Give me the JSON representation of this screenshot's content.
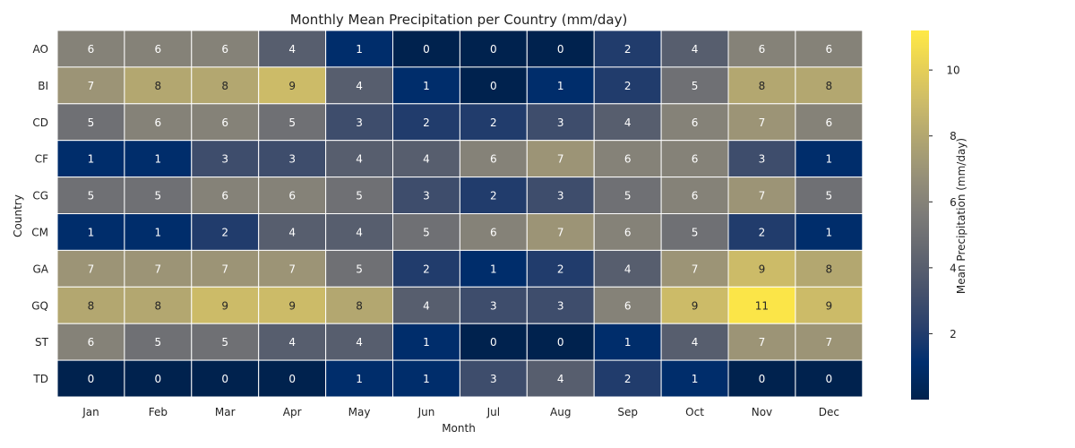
{
  "chart_data": {
    "type": "heatmap",
    "title": "Monthly Mean Precipitation per Country (mm/day)",
    "xlabel": "Month",
    "ylabel": "Country",
    "colorbar_label": "Mean Precipitation (mm/day)",
    "colormap": "cividis",
    "colorbar_range": [
      0,
      11.2
    ],
    "colorbar_ticks": [
      2,
      4,
      6,
      8,
      10
    ],
    "x_categories": [
      "Jan",
      "Feb",
      "Mar",
      "Apr",
      "May",
      "Jun",
      "Jul",
      "Aug",
      "Sep",
      "Oct",
      "Nov",
      "Dec"
    ],
    "y_categories": [
      "AO",
      "BI",
      "CD",
      "CF",
      "CG",
      "CM",
      "GA",
      "GQ",
      "ST",
      "TD"
    ],
    "values": [
      [
        6,
        6,
        6,
        4,
        1,
        0,
        0,
        0,
        2,
        4,
        6,
        6
      ],
      [
        7,
        8,
        8,
        9,
        4,
        1,
        0,
        1,
        2,
        5,
        8,
        8
      ],
      [
        5,
        6,
        6,
        5,
        3,
        2,
        2,
        3,
        4,
        6,
        7,
        6
      ],
      [
        1,
        1,
        3,
        3,
        4,
        4,
        6,
        7,
        6,
        6,
        3,
        1
      ],
      [
        5,
        5,
        6,
        6,
        5,
        3,
        2,
        3,
        5,
        6,
        7,
        5
      ],
      [
        1,
        1,
        2,
        4,
        4,
        5,
        6,
        7,
        6,
        5,
        2,
        1
      ],
      [
        7,
        7,
        7,
        7,
        5,
        2,
        1,
        2,
        4,
        7,
        9,
        8
      ],
      [
        8,
        8,
        9,
        9,
        8,
        4,
        3,
        3,
        6,
        9,
        11,
        9
      ],
      [
        6,
        5,
        5,
        4,
        4,
        1,
        0,
        0,
        1,
        4,
        7,
        7
      ],
      [
        0,
        0,
        0,
        0,
        1,
        1,
        3,
        4,
        2,
        1,
        0,
        0
      ]
    ],
    "grid": false,
    "legend": "colorbar-right"
  }
}
